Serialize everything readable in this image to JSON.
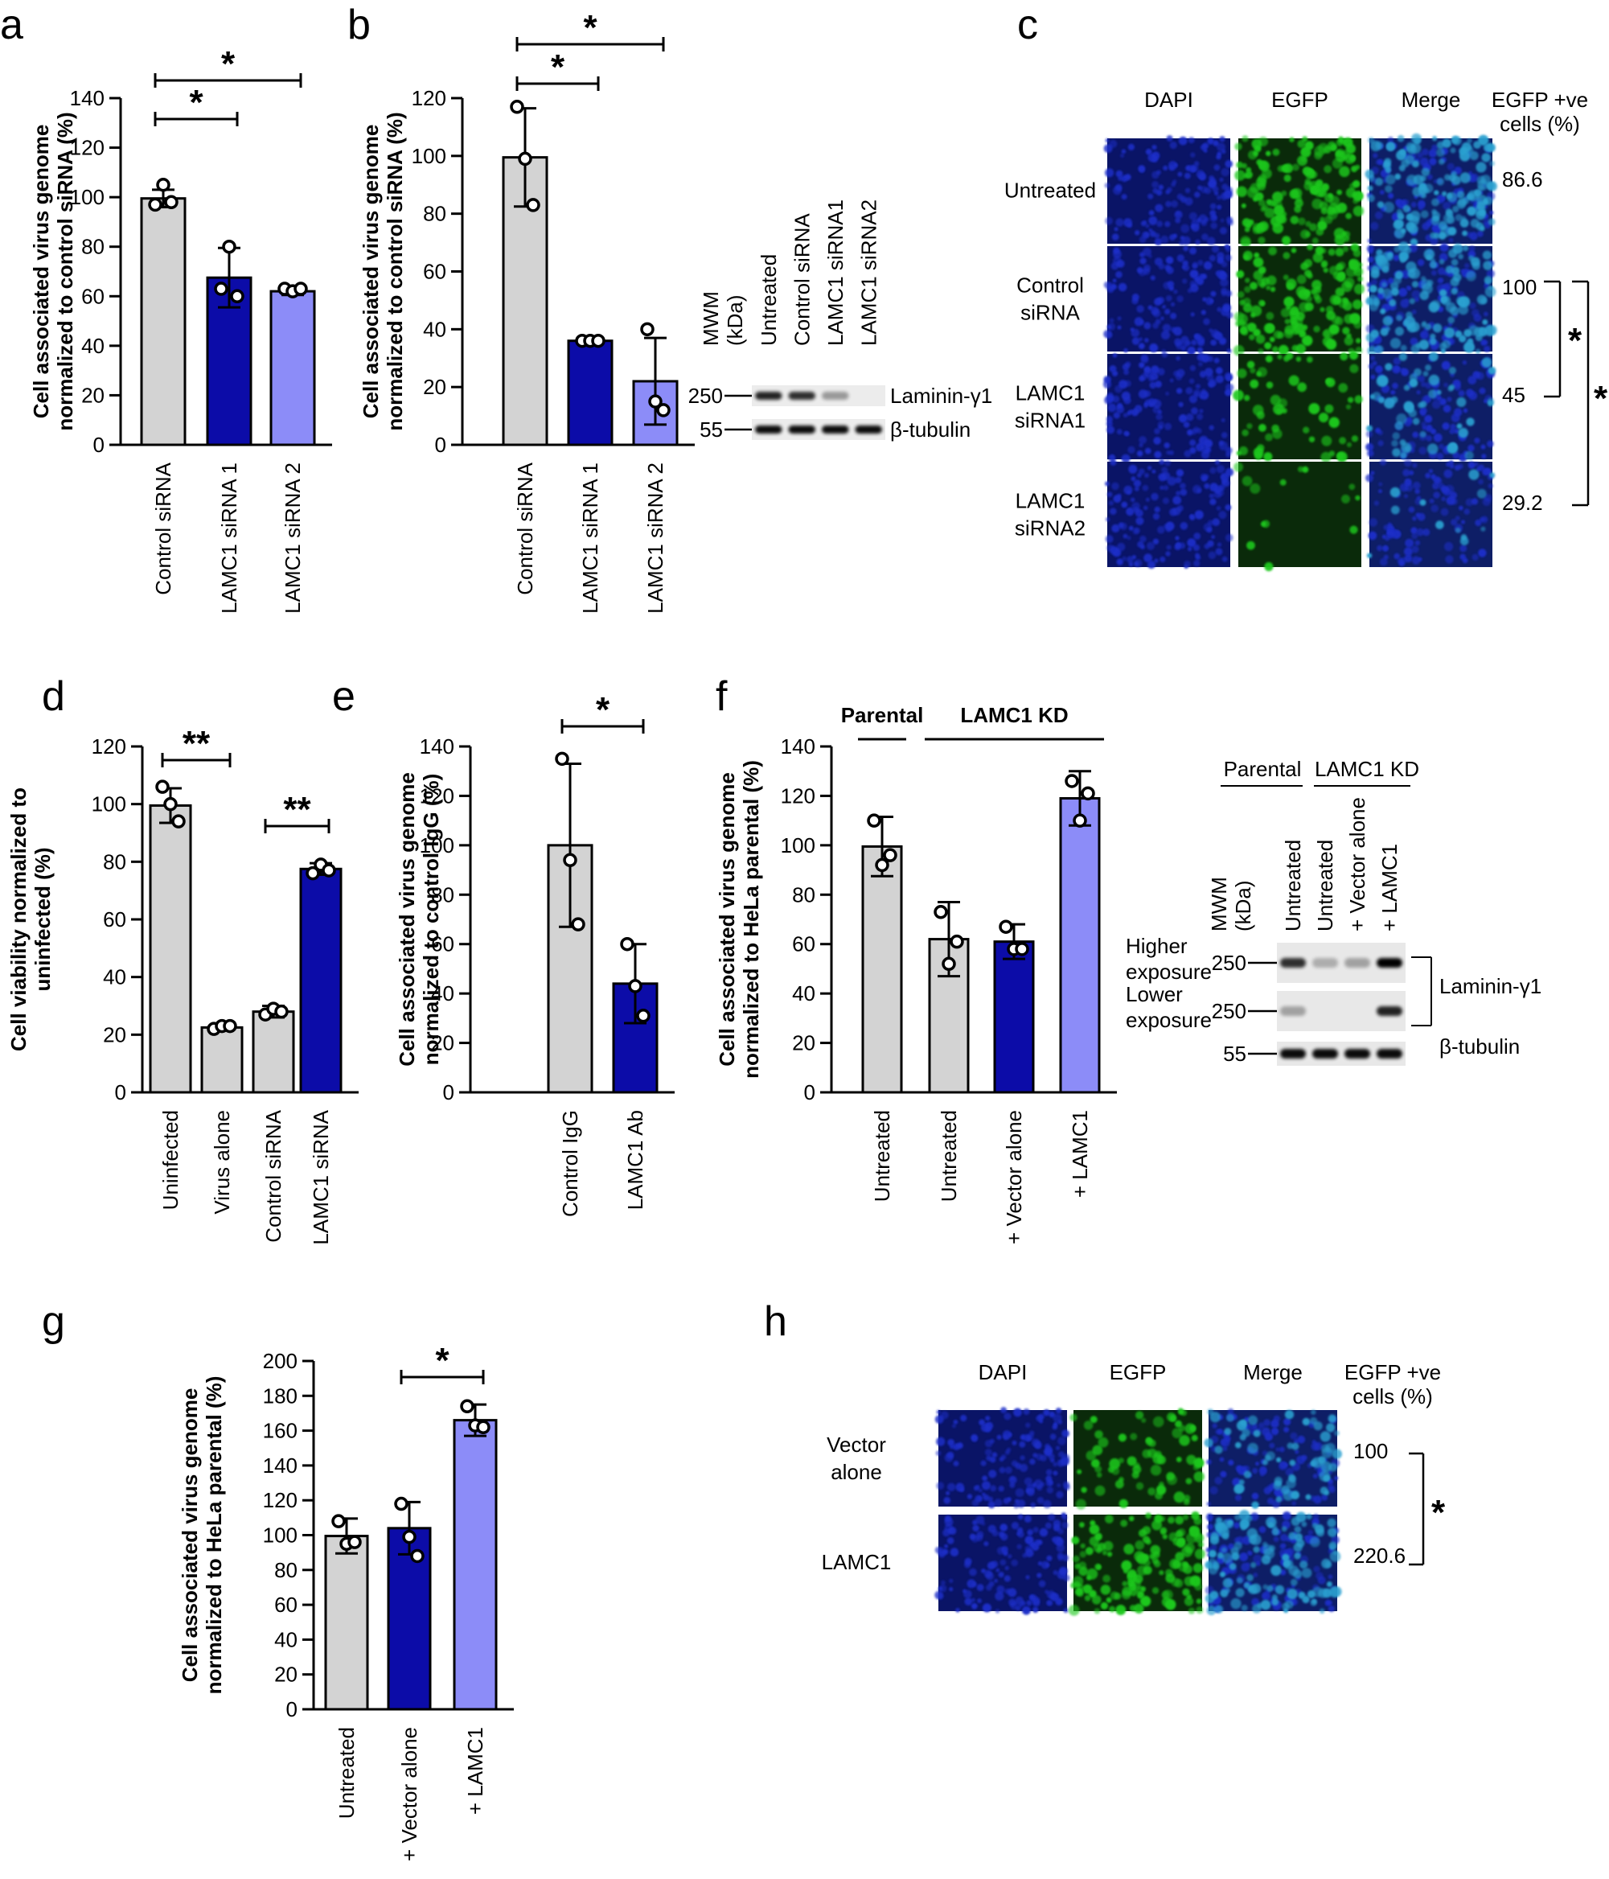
{
  "colors": {
    "grey": "#d3d3d3",
    "dark_blue": "#0c0ca8",
    "light_blue": "#8c8cf8",
    "dapi": "#1e2ec8",
    "egfp": "#1ec81e",
    "merge": "#2aa0d0"
  },
  "panels": {
    "a": "a",
    "b": "b",
    "c": "c",
    "d": "d",
    "e": "e",
    "f": "f",
    "g": "g",
    "h": "h"
  },
  "chart_data": [
    {
      "panel": "a",
      "type": "bar",
      "ylabel": [
        "Cell associated virus genome",
        "normalized to control siRNA (%)"
      ],
      "ylim": [
        0,
        140
      ],
      "yticks": [
        0,
        20,
        40,
        60,
        80,
        100,
        120,
        140
      ],
      "categories": [
        "Control siRNA",
        "LAMC1 siRNA 1",
        "LAMC1 siRNA 2"
      ],
      "values": [
        99.5,
        67.5,
        62
      ],
      "errors": [
        3.5,
        12,
        1.5
      ],
      "points": [
        [
          97,
          105,
          98
        ],
        [
          63,
          80,
          60
        ],
        [
          63,
          62,
          63
        ]
      ],
      "bar_colors": [
        "grey",
        "dark_blue",
        "light_blue"
      ],
      "significance": [
        {
          "from": 0,
          "to": 1,
          "label": "*"
        },
        {
          "from": 0,
          "to": 2,
          "label": "*"
        }
      ]
    },
    {
      "panel": "b",
      "type": "bar",
      "ylabel": [
        "Cell associated virus genome",
        "normalized to control siRNA (%)"
      ],
      "ylim": [
        0,
        120
      ],
      "yticks": [
        0,
        20,
        40,
        60,
        80,
        100,
        120
      ],
      "categories": [
        "Control siRNA",
        "LAMC1 siRNA 1",
        "LAMC1 siRNA 2"
      ],
      "values": [
        99.5,
        36,
        22
      ],
      "errors": [
        17,
        0.5,
        15
      ],
      "points": [
        [
          117,
          99,
          83
        ],
        [
          36,
          36,
          36
        ],
        [
          40,
          15,
          12
        ]
      ],
      "bar_colors": [
        "grey",
        "dark_blue",
        "light_blue"
      ],
      "significance": [
        {
          "from": 0,
          "to": 1,
          "label": "*"
        },
        {
          "from": 0,
          "to": 2,
          "label": "*"
        }
      ]
    },
    {
      "panel": "d",
      "type": "bar",
      "ylabel": [
        "Cell viability normalized to",
        "uninfected (%)"
      ],
      "ylim": [
        0,
        120
      ],
      "yticks": [
        0,
        20,
        40,
        60,
        80,
        100,
        120
      ],
      "categories": [
        "Uninfected",
        "Virus alone",
        "Control siRNA",
        "LAMC1 siRNA"
      ],
      "values": [
        99.5,
        22.5,
        28,
        77.5
      ],
      "errors": [
        6,
        0.5,
        2,
        2
      ],
      "points": [
        [
          106,
          100,
          94
        ],
        [
          22,
          23,
          23
        ],
        [
          27,
          29,
          28
        ],
        [
          76,
          79,
          77
        ]
      ],
      "bar_colors": [
        "grey",
        "grey",
        "grey",
        "dark_blue"
      ],
      "significance": [
        {
          "from": 0,
          "to": 1,
          "label": "**"
        },
        {
          "from": 2,
          "to": 3,
          "label": "**"
        }
      ]
    },
    {
      "panel": "e",
      "type": "bar",
      "ylabel": [
        "Cell associated virus genome",
        "normalized to control IgG (%)"
      ],
      "ylim": [
        0,
        140
      ],
      "yticks": [
        0,
        20,
        40,
        60,
        80,
        100,
        120,
        140
      ],
      "categories": [
        "Control IgG",
        "LAMC1 Ab"
      ],
      "values": [
        100,
        44
      ],
      "errors": [
        33,
        16
      ],
      "points": [
        [
          135,
          94,
          68
        ],
        [
          60,
          43,
          31
        ]
      ],
      "bar_colors": [
        "grey",
        "dark_blue"
      ],
      "significance": [
        {
          "from": 0,
          "to": 1,
          "label": "*"
        }
      ]
    },
    {
      "panel": "f",
      "type": "bar",
      "ylabel": [
        "Cell associated virus genome",
        "normalized to HeLa parental (%)"
      ],
      "ylim": [
        0,
        140
      ],
      "yticks": [
        0,
        20,
        40,
        60,
        80,
        100,
        120,
        140
      ],
      "categories": [
        "Untreated",
        "Untreated",
        "+ Vector alone",
        "+ LAMC1"
      ],
      "values": [
        99.5,
        62,
        61,
        119
      ],
      "errors": [
        12,
        15,
        7,
        11
      ],
      "points": [
        [
          110,
          92,
          96
        ],
        [
          73,
          52,
          61
        ],
        [
          67,
          58,
          58
        ],
        [
          126,
          110,
          121
        ]
      ],
      "bar_colors": [
        "grey",
        "grey",
        "dark_blue",
        "light_blue"
      ],
      "groups": [
        {
          "label": "Parental",
          "from": 0,
          "to": 0
        },
        {
          "label": "LAMC1 KD",
          "from": 1,
          "to": 3
        }
      ]
    },
    {
      "panel": "g",
      "type": "bar",
      "ylabel": [
        "Cell associated virus genome",
        "normalized to HeLa parental (%)"
      ],
      "ylim": [
        0,
        200
      ],
      "yticks": [
        0,
        20,
        40,
        60,
        80,
        100,
        120,
        140,
        160,
        180,
        200
      ],
      "categories": [
        "Untreated",
        "+ Vector alone",
        "+ LAMC1"
      ],
      "values": [
        99.5,
        104,
        166
      ],
      "errors": [
        10,
        15,
        9
      ],
      "points": [
        [
          108,
          95,
          96
        ],
        [
          118,
          99,
          88
        ],
        [
          174,
          163,
          162
        ]
      ],
      "bar_colors": [
        "grey",
        "dark_blue",
        "light_blue"
      ],
      "significance": [
        {
          "from": 1,
          "to": 2,
          "label": "*"
        }
      ]
    }
  ],
  "blot_b": {
    "lanes": [
      "Untreated",
      "Control siRNA",
      "LAMC1 siRNA1",
      "LAMC1 siRNA2"
    ],
    "mwm_label": [
      "MWM",
      "(kDa)"
    ],
    "rows": [
      {
        "marker": "250",
        "label": "Laminin-γ1",
        "intensity": [
          0.85,
          0.8,
          0.35,
          0.0
        ]
      },
      {
        "marker": "55",
        "label": "β-tubulin",
        "intensity": [
          0.95,
          0.95,
          0.95,
          0.95
        ]
      }
    ]
  },
  "blot_f": {
    "group_labels": [
      "Parental",
      "LAMC1 KD"
    ],
    "lanes": [
      "Untreated",
      "Untreated",
      "+ Vector alone",
      "+ LAMC1"
    ],
    "mwm_label": [
      "MWM",
      "(kDa)"
    ],
    "rows": [
      {
        "marker": "250",
        "side_label": [
          "Higher",
          "exposure"
        ],
        "intensity": [
          0.8,
          0.25,
          0.3,
          1.0
        ]
      },
      {
        "marker": "250",
        "side_label": [
          "Lower",
          "exposure"
        ],
        "intensity": [
          0.3,
          0.0,
          0.0,
          0.85
        ]
      },
      {
        "marker": "55",
        "side_label": [],
        "intensity": [
          0.95,
          0.95,
          0.95,
          0.95
        ]
      }
    ],
    "bracket_label": "Laminin-γ1",
    "tubulin_label": "β-tubulin"
  },
  "micro_c": {
    "columns": [
      "DAPI",
      "EGFP",
      "Merge"
    ],
    "pct_header": [
      "EGFP +ve",
      "cells (%)"
    ],
    "rows": [
      {
        "label": [
          "Untreated"
        ],
        "pct": "86.6",
        "egfp": 0.9
      },
      {
        "label": [
          "Control",
          "siRNA"
        ],
        "pct": "100",
        "egfp": 0.85
      },
      {
        "label": [
          "LAMC1",
          "siRNA1"
        ],
        "pct": "45",
        "egfp": 0.35
      },
      {
        "label": [
          "LAMC1",
          "siRNA2"
        ],
        "pct": "29.2",
        "egfp": 0.08
      }
    ],
    "significance": [
      {
        "label": "*"
      },
      {
        "label": "*"
      }
    ]
  },
  "micro_h": {
    "columns": [
      "DAPI",
      "EGFP",
      "Merge"
    ],
    "pct_header": [
      "EGFP +ve",
      "cells (%)"
    ],
    "rows": [
      {
        "label": [
          "Vector",
          "alone"
        ],
        "pct": "100",
        "egfp": 0.4
      },
      {
        "label": [
          "LAMC1"
        ],
        "pct": "220.6",
        "egfp": 0.8
      }
    ],
    "significance": {
      "label": "*"
    }
  }
}
